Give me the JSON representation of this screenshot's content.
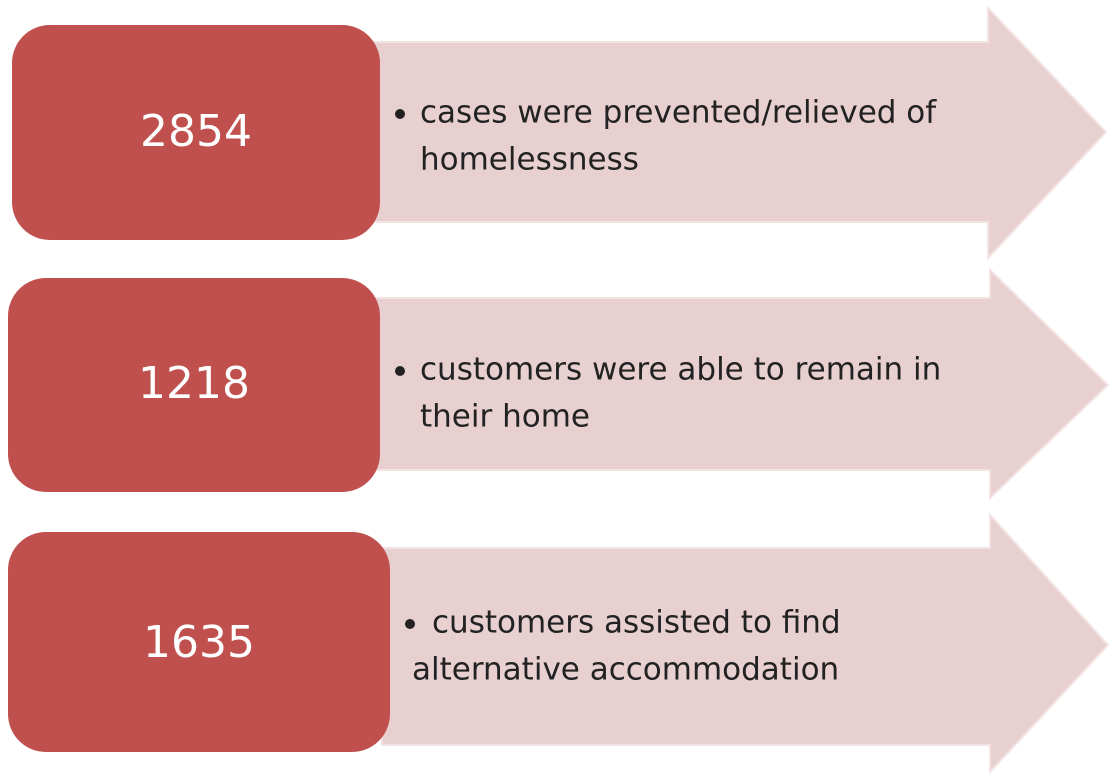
{
  "items": [
    {
      "number": "2854",
      "lines": [
        "cases were prevented/relieved of",
        "homelessness"
      ]
    },
    {
      "number": "1218",
      "lines": [
        "customers were able to remain in",
        "their home"
      ]
    },
    {
      "number": "1635",
      "lines": [
        "customers assisted to find",
        "alternative accommodation"
      ]
    }
  ]
}
